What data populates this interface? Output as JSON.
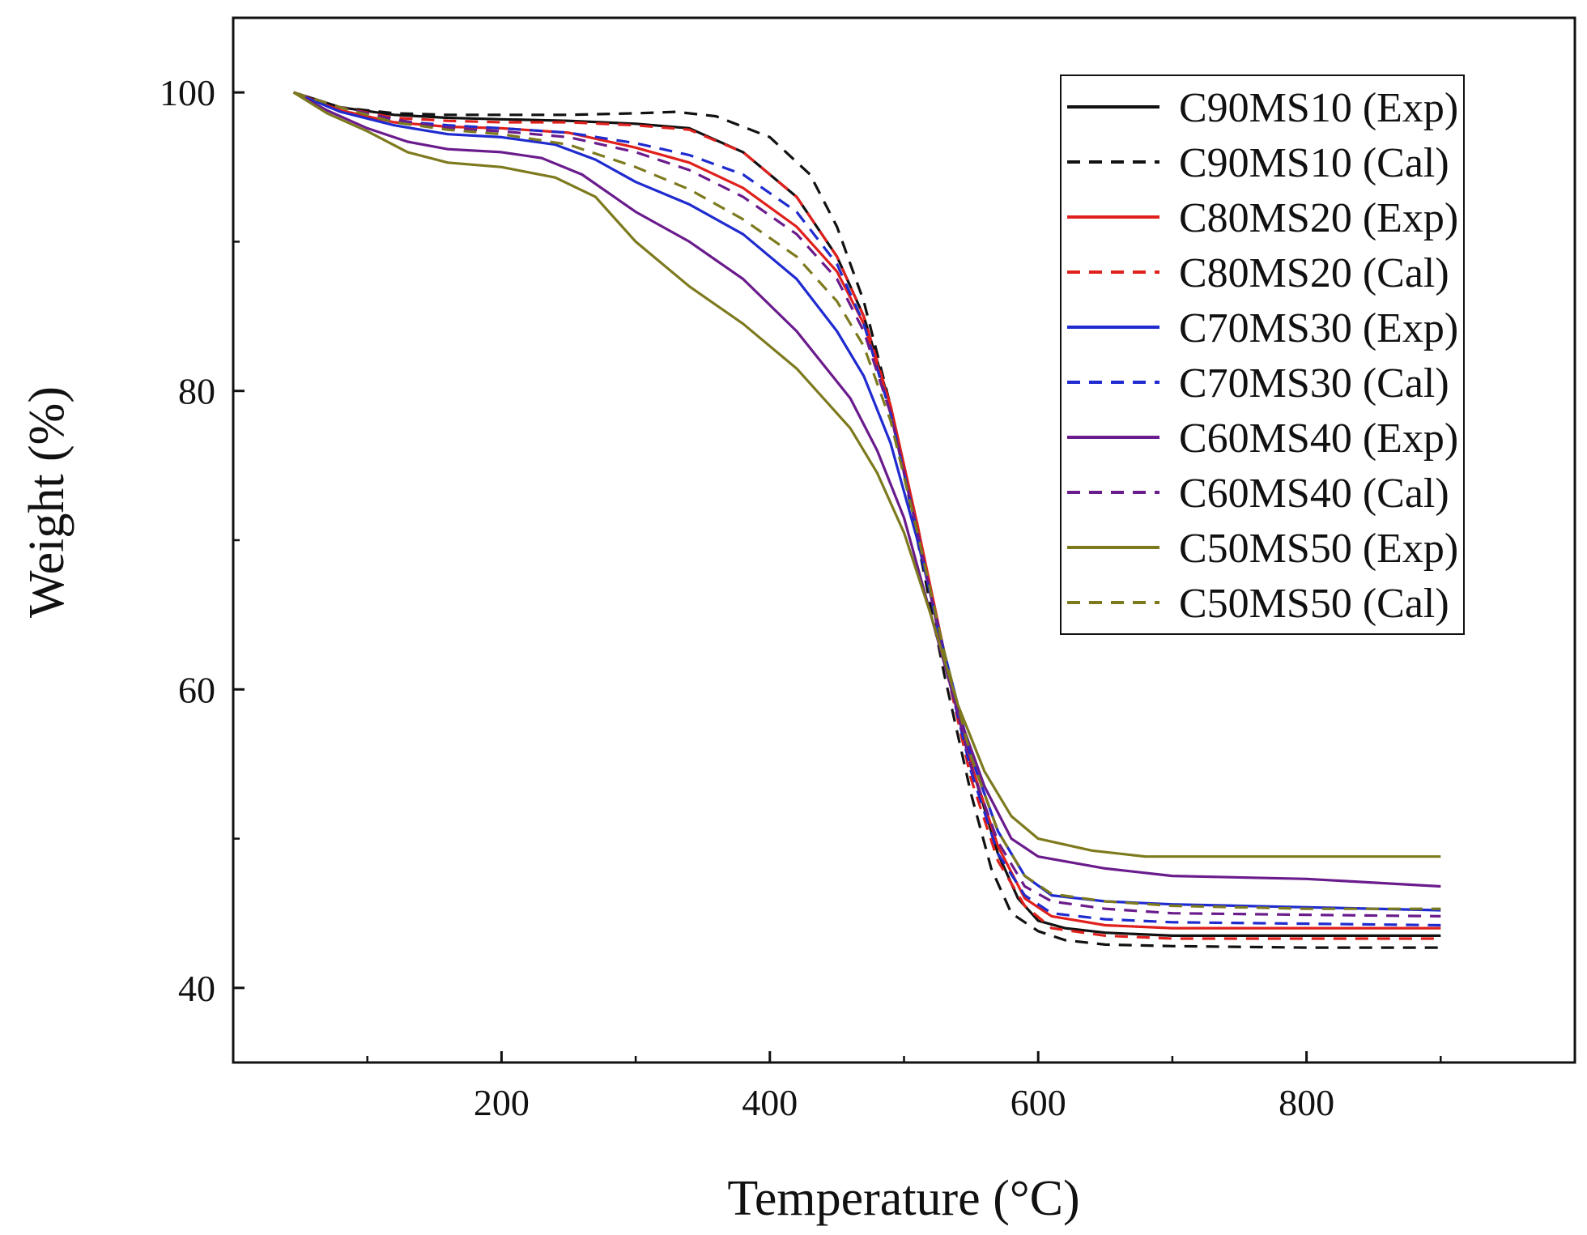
{
  "chart_data": {
    "type": "line",
    "title": "",
    "xlabel": "Temperature (°C)",
    "ylabel": "Weight (%)",
    "xlim": [
      0,
      1000
    ],
    "ylim": [
      35,
      105
    ],
    "x_ticks": [
      200,
      400,
      600,
      800
    ],
    "y_ticks": [
      40,
      60,
      80,
      100
    ],
    "legend_position": "top-right",
    "grid": false,
    "series": [
      {
        "name": "C90MS10 (Exp)",
        "color": "#111111",
        "style": "solid",
        "points": [
          [
            45,
            100
          ],
          [
            80,
            99
          ],
          [
            120,
            98.5
          ],
          [
            160,
            98.3
          ],
          [
            200,
            98.2
          ],
          [
            250,
            98.1
          ],
          [
            300,
            97.9
          ],
          [
            340,
            97.6
          ],
          [
            380,
            96
          ],
          [
            420,
            93
          ],
          [
            450,
            89
          ],
          [
            470,
            85
          ],
          [
            490,
            79
          ],
          [
            510,
            71
          ],
          [
            530,
            62
          ],
          [
            550,
            55
          ],
          [
            570,
            49
          ],
          [
            585,
            46
          ],
          [
            600,
            44.5
          ],
          [
            620,
            44
          ],
          [
            650,
            43.7
          ],
          [
            700,
            43.5
          ],
          [
            800,
            43.5
          ],
          [
            900,
            43.5
          ]
        ]
      },
      {
        "name": "C90MS10 (Cal)",
        "color": "#111111",
        "style": "dash",
        "points": [
          [
            45,
            100
          ],
          [
            80,
            99
          ],
          [
            120,
            98.6
          ],
          [
            160,
            98.5
          ],
          [
            200,
            98.5
          ],
          [
            250,
            98.5
          ],
          [
            300,
            98.6
          ],
          [
            330,
            98.7
          ],
          [
            360,
            98.4
          ],
          [
            400,
            97
          ],
          [
            430,
            94.5
          ],
          [
            450,
            91
          ],
          [
            470,
            86
          ],
          [
            490,
            79
          ],
          [
            510,
            70
          ],
          [
            530,
            61
          ],
          [
            550,
            53
          ],
          [
            565,
            48
          ],
          [
            580,
            45
          ],
          [
            600,
            43.8
          ],
          [
            620,
            43.2
          ],
          [
            650,
            42.9
          ],
          [
            700,
            42.8
          ],
          [
            800,
            42.7
          ],
          [
            900,
            42.7
          ]
        ]
      },
      {
        "name": "C80MS20 (Exp)",
        "color": "#e0201c",
        "style": "solid",
        "points": [
          [
            45,
            100
          ],
          [
            80,
            98.8
          ],
          [
            120,
            98
          ],
          [
            160,
            97.7
          ],
          [
            200,
            97.6
          ],
          [
            250,
            97.3
          ],
          [
            300,
            96.3
          ],
          [
            340,
            95.3
          ],
          [
            380,
            93.6
          ],
          [
            420,
            91
          ],
          [
            450,
            88
          ],
          [
            470,
            84.5
          ],
          [
            490,
            79
          ],
          [
            510,
            71
          ],
          [
            530,
            62.5
          ],
          [
            550,
            55
          ],
          [
            570,
            49.5
          ],
          [
            590,
            46
          ],
          [
            610,
            44.8
          ],
          [
            650,
            44.2
          ],
          [
            700,
            44
          ],
          [
            800,
            44
          ],
          [
            900,
            44
          ]
        ]
      },
      {
        "name": "C80MS20 (Cal)",
        "color": "#e0201c",
        "style": "dash",
        "points": [
          [
            45,
            100
          ],
          [
            80,
            99
          ],
          [
            120,
            98.3
          ],
          [
            160,
            98.1
          ],
          [
            200,
            98
          ],
          [
            250,
            98
          ],
          [
            300,
            97.8
          ],
          [
            340,
            97.5
          ],
          [
            380,
            96
          ],
          [
            420,
            93
          ],
          [
            450,
            89
          ],
          [
            470,
            85
          ],
          [
            490,
            79
          ],
          [
            510,
            71
          ],
          [
            530,
            62
          ],
          [
            550,
            54
          ],
          [
            570,
            48.5
          ],
          [
            590,
            45.5
          ],
          [
            610,
            44
          ],
          [
            650,
            43.5
          ],
          [
            700,
            43.3
          ],
          [
            800,
            43.3
          ],
          [
            900,
            43.3
          ]
        ]
      },
      {
        "name": "C70MS30 (Exp)",
        "color": "#1f2bcf",
        "style": "solid",
        "points": [
          [
            45,
            100
          ],
          [
            80,
            98.7
          ],
          [
            120,
            97.8
          ],
          [
            160,
            97.2
          ],
          [
            200,
            97
          ],
          [
            240,
            96.5
          ],
          [
            270,
            95.5
          ],
          [
            300,
            94
          ],
          [
            340,
            92.5
          ],
          [
            380,
            90.5
          ],
          [
            420,
            87.5
          ],
          [
            450,
            84
          ],
          [
            470,
            81
          ],
          [
            490,
            76.5
          ],
          [
            510,
            70
          ],
          [
            530,
            62.5
          ],
          [
            550,
            55.5
          ],
          [
            570,
            50.5
          ],
          [
            590,
            47.5
          ],
          [
            610,
            46.2
          ],
          [
            650,
            45.8
          ],
          [
            700,
            45.6
          ],
          [
            800,
            45.4
          ],
          [
            900,
            45.2
          ]
        ]
      },
      {
        "name": "C70MS30 (Cal)",
        "color": "#1f2bcf",
        "style": "dash",
        "points": [
          [
            45,
            100
          ],
          [
            80,
            99
          ],
          [
            120,
            98.1
          ],
          [
            160,
            97.8
          ],
          [
            200,
            97.6
          ],
          [
            250,
            97.3
          ],
          [
            300,
            96.6
          ],
          [
            340,
            95.8
          ],
          [
            380,
            94.5
          ],
          [
            420,
            92
          ],
          [
            450,
            88.5
          ],
          [
            470,
            84.5
          ],
          [
            490,
            78.5
          ],
          [
            510,
            70.5
          ],
          [
            530,
            62
          ],
          [
            550,
            54.5
          ],
          [
            570,
            49
          ],
          [
            590,
            46.2
          ],
          [
            610,
            45
          ],
          [
            650,
            44.6
          ],
          [
            700,
            44.4
          ],
          [
            800,
            44.3
          ],
          [
            900,
            44.2
          ]
        ]
      },
      {
        "name": "C60MS40 (Exp)",
        "color": "#6a1b8c",
        "style": "solid",
        "points": [
          [
            45,
            100
          ],
          [
            70,
            98.8
          ],
          [
            100,
            97.6
          ],
          [
            130,
            96.7
          ],
          [
            160,
            96.2
          ],
          [
            200,
            96
          ],
          [
            230,
            95.6
          ],
          [
            260,
            94.5
          ],
          [
            300,
            92
          ],
          [
            340,
            90
          ],
          [
            380,
            87.5
          ],
          [
            420,
            84
          ],
          [
            460,
            79.5
          ],
          [
            480,
            76
          ],
          [
            500,
            71.5
          ],
          [
            520,
            65
          ],
          [
            540,
            58.5
          ],
          [
            560,
            53.5
          ],
          [
            580,
            50
          ],
          [
            600,
            48.8
          ],
          [
            650,
            48
          ],
          [
            700,
            47.5
          ],
          [
            800,
            47.3
          ],
          [
            900,
            46.8
          ]
        ]
      },
      {
        "name": "C60MS40 (Cal)",
        "color": "#6a1b8c",
        "style": "dash",
        "points": [
          [
            45,
            100
          ],
          [
            80,
            99
          ],
          [
            120,
            98.2
          ],
          [
            160,
            97.6
          ],
          [
            200,
            97.4
          ],
          [
            250,
            97
          ],
          [
            300,
            96
          ],
          [
            340,
            94.8
          ],
          [
            380,
            93
          ],
          [
            420,
            90.5
          ],
          [
            450,
            87.5
          ],
          [
            470,
            84
          ],
          [
            490,
            78.5
          ],
          [
            510,
            70.5
          ],
          [
            530,
            62
          ],
          [
            550,
            54.8
          ],
          [
            570,
            49.8
          ],
          [
            590,
            46.8
          ],
          [
            610,
            45.8
          ],
          [
            650,
            45.3
          ],
          [
            700,
            45
          ],
          [
            800,
            44.9
          ],
          [
            900,
            44.8
          ]
        ]
      },
      {
        "name": "C50MS50 (Exp)",
        "color": "#7d7a1e",
        "style": "solid",
        "points": [
          [
            45,
            100
          ],
          [
            70,
            98.6
          ],
          [
            100,
            97.4
          ],
          [
            130,
            96
          ],
          [
            160,
            95.3
          ],
          [
            200,
            95
          ],
          [
            240,
            94.3
          ],
          [
            270,
            93
          ],
          [
            300,
            90
          ],
          [
            340,
            87
          ],
          [
            380,
            84.5
          ],
          [
            420,
            81.5
          ],
          [
            460,
            77.5
          ],
          [
            480,
            74.5
          ],
          [
            500,
            70.5
          ],
          [
            520,
            65
          ],
          [
            540,
            59
          ],
          [
            560,
            54.5
          ],
          [
            580,
            51.5
          ],
          [
            600,
            50
          ],
          [
            640,
            49.2
          ],
          [
            680,
            48.8
          ],
          [
            800,
            48.8
          ],
          [
            900,
            48.8
          ]
        ]
      },
      {
        "name": "C50MS50 (Cal)",
        "color": "#7d7a1e",
        "style": "dash",
        "points": [
          [
            45,
            100
          ],
          [
            80,
            99
          ],
          [
            120,
            98
          ],
          [
            160,
            97.5
          ],
          [
            200,
            97.2
          ],
          [
            250,
            96.5
          ],
          [
            300,
            95
          ],
          [
            340,
            93.5
          ],
          [
            380,
            91.5
          ],
          [
            420,
            89
          ],
          [
            450,
            86
          ],
          [
            470,
            83
          ],
          [
            490,
            78
          ],
          [
            510,
            70.5
          ],
          [
            530,
            62.5
          ],
          [
            550,
            55.5
          ],
          [
            570,
            50.5
          ],
          [
            590,
            47.5
          ],
          [
            610,
            46.3
          ],
          [
            650,
            45.8
          ],
          [
            700,
            45.5
          ],
          [
            800,
            45.3
          ],
          [
            900,
            45.3
          ]
        ]
      }
    ]
  }
}
